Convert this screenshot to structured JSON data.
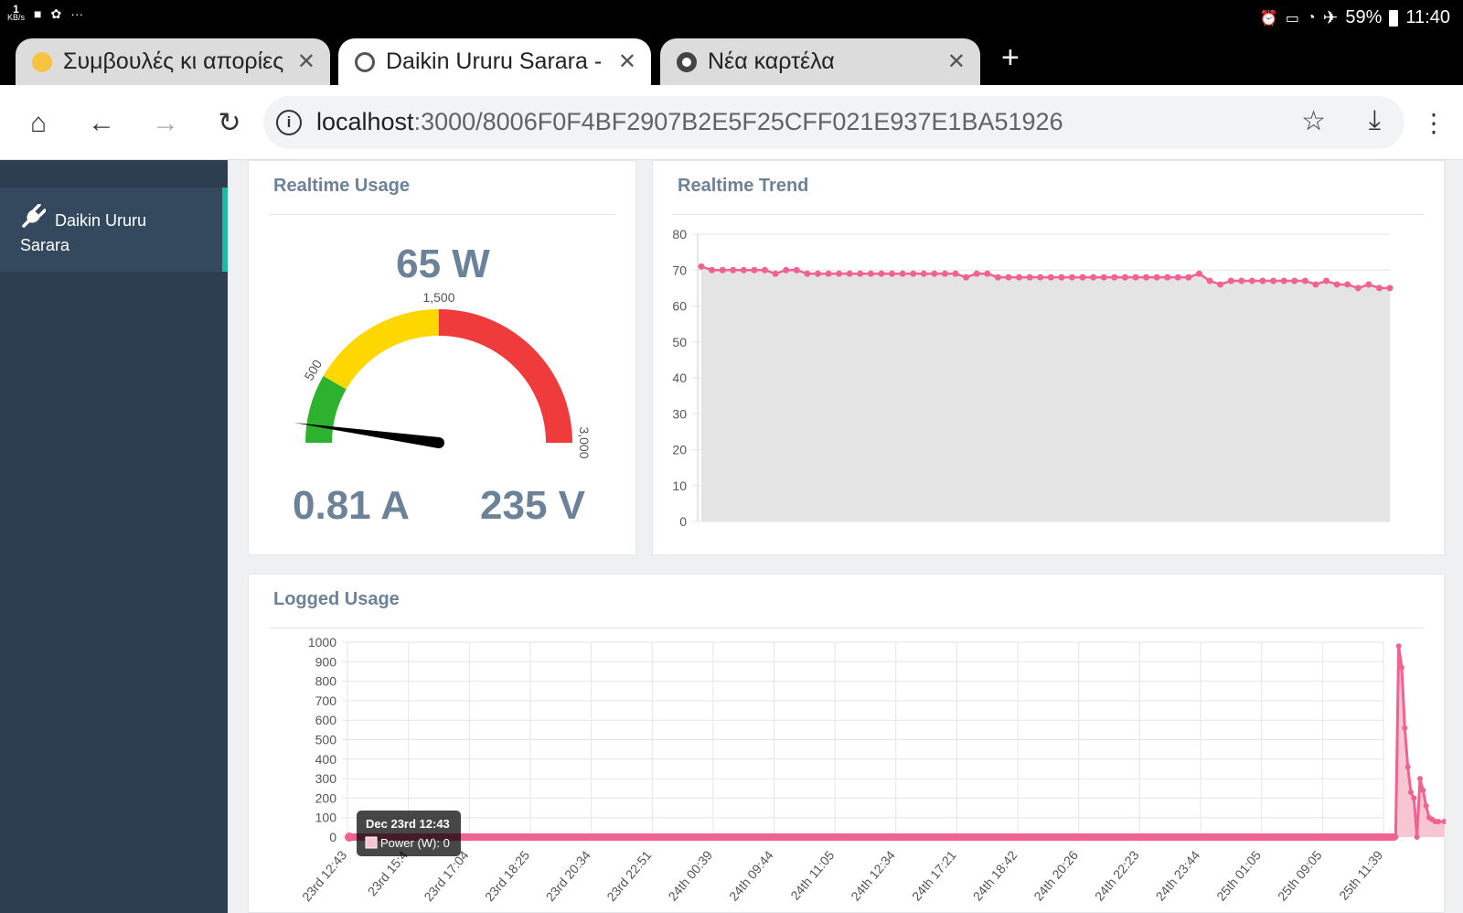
{
  "statusbar": {
    "net_rate_value": "1",
    "net_rate_unit": "KB/s",
    "battery": "59%",
    "time": "11:40"
  },
  "tabs": [
    {
      "title": "Συμβουλές κι απορίες \\",
      "active": false,
      "favicon": "smiley-icon"
    },
    {
      "title": "Daikin Ururu Sarara - Ene",
      "active": true,
      "favicon": "globe-icon"
    },
    {
      "title": "Νέα καρτέλα",
      "active": false,
      "favicon": "chrome-icon"
    }
  ],
  "toolbar": {
    "url_host": "localhost",
    "url_path": ":3000/8006F0F4BF2907B2E5F25CFF021E937E1BA51926"
  },
  "sidebar": {
    "items": [
      {
        "label_line1": "Daikin Ururu",
        "label_line2": "Sarara"
      }
    ]
  },
  "usage": {
    "title": "Realtime Usage",
    "power": "65 W",
    "current": "0.81 A",
    "voltage": "235 V",
    "gauge": {
      "min": 0,
      "max": 3000,
      "value": 65,
      "labels": [
        "500",
        "1,500",
        "3,000"
      ],
      "colors": {
        "green": "#2eb22e",
        "yellow": "#ffd700",
        "red": "#ef3b3b",
        "needle": "#000000"
      }
    }
  },
  "trend": {
    "title": "Realtime Trend"
  },
  "logged": {
    "title": "Logged Usage",
    "tooltip_title": "Dec 23rd 12:43",
    "tooltip_body": "Power (W): 0"
  },
  "chart_data": [
    {
      "type": "area",
      "name": "realtime-trend",
      "y_ticks": [
        0,
        10,
        20,
        30,
        40,
        50,
        60,
        70,
        80
      ],
      "ylim": [
        0,
        80
      ],
      "line_color": "#f06292",
      "fill_color": "#e4e4e4",
      "values": [
        71,
        70,
        70,
        70,
        70,
        70,
        70,
        69,
        70,
        70,
        69,
        69,
        69,
        69,
        69,
        69,
        69,
        69,
        69,
        69,
        69,
        69,
        69,
        69,
        69,
        68,
        69,
        69,
        68,
        68,
        68,
        68,
        68,
        68,
        68,
        68,
        68,
        68,
        68,
        68,
        68,
        68,
        68,
        68,
        68,
        68,
        68,
        69,
        67,
        66,
        67,
        67,
        67,
        67,
        67,
        67,
        67,
        67,
        66,
        67,
        66,
        66,
        65,
        66,
        65,
        65
      ]
    },
    {
      "type": "area",
      "name": "logged-usage",
      "y_ticks": [
        0,
        100,
        200,
        300,
        400,
        500,
        600,
        700,
        800,
        900,
        1000
      ],
      "ylim": [
        0,
        1000
      ],
      "x_labels": [
        "23rd 12:43",
        "23rd 15:4",
        "23rd 17:04",
        "23rd 18:25",
        "23rd 20:34",
        "23rd 22:51",
        "24th 00:39",
        "24th 09:44",
        "24th 11:05",
        "24th 12:34",
        "24th 17:21",
        "24th 18:42",
        "24th 20:26",
        "24th 22:23",
        "24th 23:44",
        "25th 01:05",
        "25th 09:05",
        "25th 11:39"
      ],
      "line_color": "#f06292",
      "spike_x": [
        17.2,
        17.25,
        17.3,
        17.35,
        17.4,
        17.45,
        17.5,
        17.55,
        17.6,
        17.65,
        17.7,
        17.75,
        17.8,
        17.85,
        17.9,
        18.0
      ],
      "spike_y": [
        0,
        980,
        870,
        560,
        360,
        230,
        200,
        0,
        300,
        240,
        160,
        100,
        90,
        80,
        80,
        80
      ]
    }
  ]
}
